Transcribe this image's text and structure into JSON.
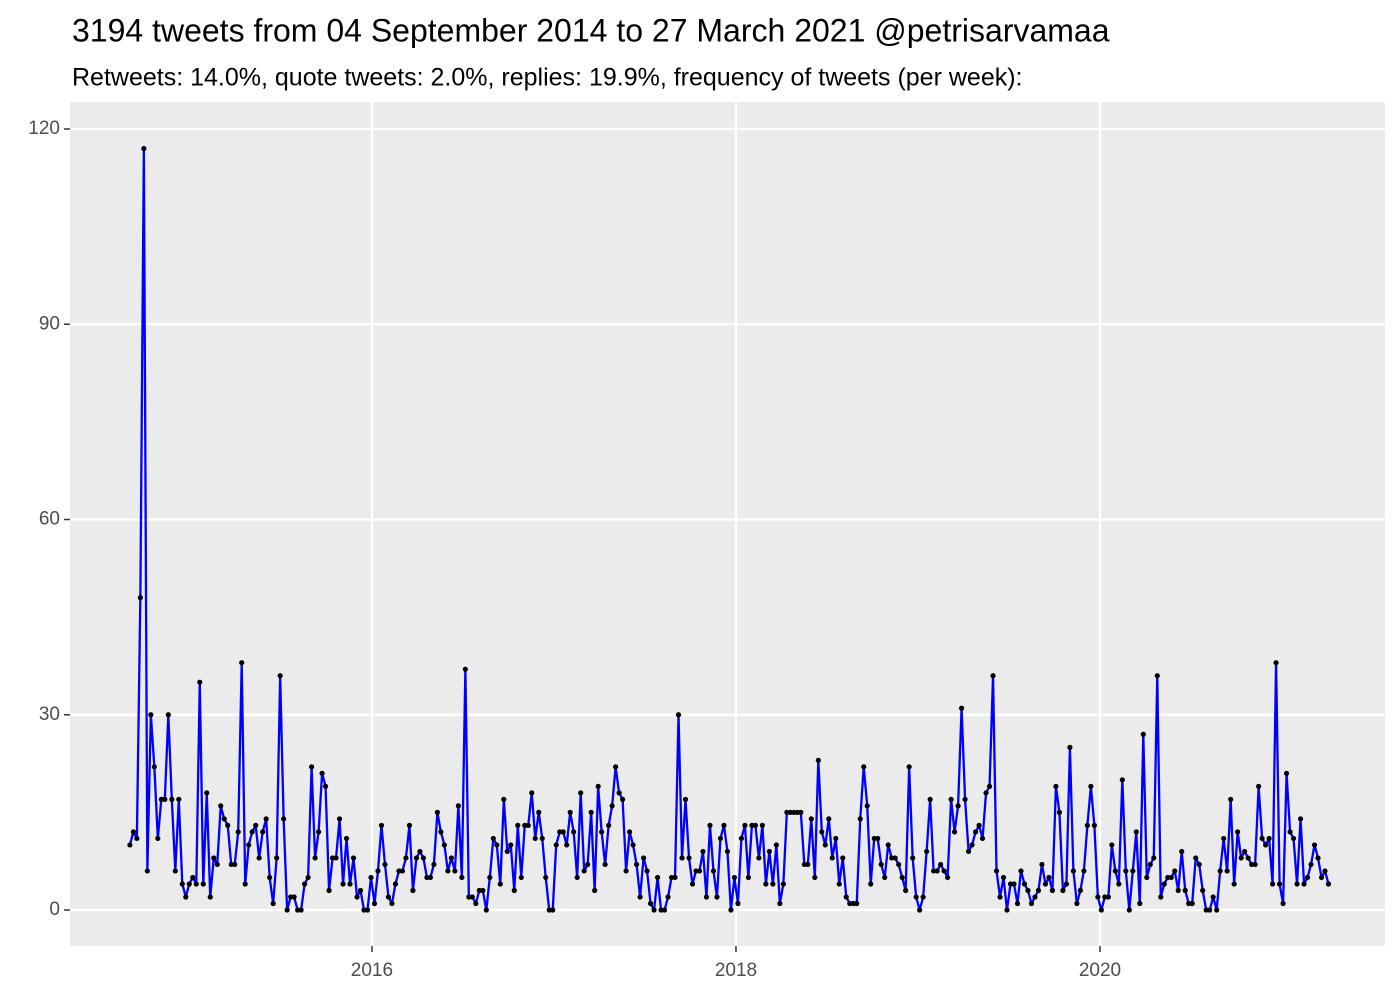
{
  "chart_data": {
    "type": "line",
    "title": "3194 tweets from 04 September 2014 to 27 March 2021 @petrisarvamaa",
    "subtitle": "Retweets: 14.0%, quote tweets: 2.0%, replies: 19.9%, frequency of tweets (per week):",
    "x": [
      2014.67,
      2014.6892,
      2014.7084,
      2014.7276,
      2014.7468,
      2014.766,
      2014.7852,
      2014.8044,
      2014.8236,
      2014.8428,
      2014.862,
      2014.8812,
      2014.9004,
      2014.9196,
      2014.9388,
      2014.958,
      2014.9772,
      2014.9964,
      2015.0156,
      2015.0348,
      2015.054,
      2015.0732,
      2015.0924,
      2015.1116,
      2015.1308,
      2015.15,
      2015.1692,
      2015.1884,
      2015.2076,
      2015.2268,
      2015.246,
      2015.2652,
      2015.2844,
      2015.3036,
      2015.3228,
      2015.342,
      2015.3612,
      2015.3804,
      2015.3996,
      2015.4188,
      2015.438,
      2015.4572,
      2015.4764,
      2015.4956,
      2015.5148,
      2015.534,
      2015.5532,
      2015.5724,
      2015.5916,
      2015.6108,
      2015.63,
      2015.6492,
      2015.6684,
      2015.6876,
      2015.7068,
      2015.726,
      2015.7452,
      2015.7644,
      2015.7836,
      2015.8028,
      2015.822,
      2015.8412,
      2015.8604,
      2015.8796,
      2015.8988,
      2015.918,
      2015.9372,
      2015.9564,
      2015.9756,
      2015.9948,
      2016.014,
      2016.0332,
      2016.0524,
      2016.0716,
      2016.0908,
      2016.11,
      2016.1292,
      2016.1484,
      2016.1676,
      2016.1868,
      2016.206,
      2016.2252,
      2016.2444,
      2016.2636,
      2016.2828,
      2016.302,
      2016.3212,
      2016.3404,
      2016.3596,
      2016.3788,
      2016.398,
      2016.4172,
      2016.4364,
      2016.4556,
      2016.4748,
      2016.494,
      2016.5132,
      2016.5324,
      2016.5516,
      2016.5708,
      2016.59,
      2016.6092,
      2016.6284,
      2016.6476,
      2016.6668,
      2016.686,
      2016.7052,
      2016.7244,
      2016.7436,
      2016.7628,
      2016.782,
      2016.8012,
      2016.8204,
      2016.8396,
      2016.8588,
      2016.878,
      2016.8972,
      2016.9164,
      2016.9356,
      2016.9548,
      2016.974,
      2016.9932,
      2017.0124,
      2017.0316,
      2017.0508,
      2017.07,
      2017.0892,
      2017.1084,
      2017.1276,
      2017.1468,
      2017.166,
      2017.1852,
      2017.2044,
      2017.2236,
      2017.2428,
      2017.262,
      2017.2812,
      2017.3004,
      2017.3196,
      2017.3388,
      2017.358,
      2017.3772,
      2017.3964,
      2017.4156,
      2017.4348,
      2017.454,
      2017.4732,
      2017.4924,
      2017.5116,
      2017.5308,
      2017.55,
      2017.5692,
      2017.5884,
      2017.6076,
      2017.6268,
      2017.646,
      2017.6652,
      2017.6844,
      2017.7036,
      2017.7228,
      2017.742,
      2017.7612,
      2017.7804,
      2017.7996,
      2017.8188,
      2017.838,
      2017.8572,
      2017.8764,
      2017.8956,
      2017.9148,
      2017.934,
      2017.9532,
      2017.9724,
      2017.9916,
      2018.0108,
      2018.03,
      2018.0492,
      2018.0684,
      2018.0876,
      2018.1068,
      2018.126,
      2018.1452,
      2018.1644,
      2018.1836,
      2018.2028,
      2018.222,
      2018.2412,
      2018.2604,
      2018.2796,
      2018.2988,
      2018.318,
      2018.3372,
      2018.3564,
      2018.3756,
      2018.3948,
      2018.414,
      2018.4332,
      2018.4524,
      2018.4716,
      2018.4908,
      2018.51,
      2018.5292,
      2018.5484,
      2018.5676,
      2018.5868,
      2018.606,
      2018.6252,
      2018.6444,
      2018.6636,
      2018.6828,
      2018.702,
      2018.7212,
      2018.7404,
      2018.7596,
      2018.7788,
      2018.798,
      2018.8172,
      2018.8364,
      2018.8556,
      2018.8748,
      2018.894,
      2018.9132,
      2018.9324,
      2018.9516,
      2018.9708,
      2018.99,
      2019.0092,
      2019.0284,
      2019.0476,
      2019.0668,
      2019.086,
      2019.1052,
      2019.1244,
      2019.1436,
      2019.1628,
      2019.182,
      2019.2012,
      2019.2204,
      2019.2396,
      2019.2588,
      2019.278,
      2019.2972,
      2019.3164,
      2019.3356,
      2019.3548,
      2019.374,
      2019.3932,
      2019.4124,
      2019.4316,
      2019.4508,
      2019.47,
      2019.4892,
      2019.5084,
      2019.5276,
      2019.5468,
      2019.566,
      2019.5852,
      2019.6044,
      2019.6236,
      2019.6428,
      2019.662,
      2019.6812,
      2019.7004,
      2019.7196,
      2019.7388,
      2019.758,
      2019.7772,
      2019.7964,
      2019.8156,
      2019.8348,
      2019.854,
      2019.8732,
      2019.8924,
      2019.9116,
      2019.9308,
      2019.95,
      2019.9692,
      2019.9884,
      2020.0076,
      2020.0268,
      2020.046,
      2020.0652,
      2020.0844,
      2020.1036,
      2020.1228,
      2020.142,
      2020.1612,
      2020.1804,
      2020.1996,
      2020.2188,
      2020.238,
      2020.2572,
      2020.2764,
      2020.2956,
      2020.3148,
      2020.334,
      2020.3532,
      2020.3724,
      2020.3916,
      2020.4108,
      2020.43,
      2020.4492,
      2020.4684,
      2020.4876,
      2020.5068,
      2020.526,
      2020.5452,
      2020.5644,
      2020.5836,
      2020.6028,
      2020.622,
      2020.6412,
      2020.6604,
      2020.6796,
      2020.6988,
      2020.718,
      2020.7372,
      2020.7564,
      2020.7756,
      2020.7948,
      2020.814,
      2020.8332,
      2020.8524,
      2020.8716,
      2020.8908,
      2020.91,
      2020.9292,
      2020.9484,
      2020.9676,
      2020.9868,
      2021.006,
      2021.0252,
      2021.0444,
      2021.0636,
      2021.0828,
      2021.102,
      2021.1212,
      2021.1404,
      2021.1596,
      2021.1788,
      2021.198,
      2021.2172,
      2021.2364,
      2021.2556
    ],
    "values": [
      10,
      12,
      11,
      48,
      117,
      6,
      30,
      22,
      11,
      17,
      17,
      30,
      17,
      6,
      17,
      4,
      2,
      4,
      5,
      4,
      35,
      4,
      18,
      2,
      8,
      7,
      16,
      14,
      13,
      7,
      7,
      12,
      38,
      4,
      10,
      12,
      13,
      8,
      12,
      14,
      5,
      1,
      8,
      36,
      14,
      0,
      2,
      2,
      0,
      0,
      4,
      5,
      22,
      8,
      12,
      21,
      19,
      3,
      8,
      8,
      14,
      4,
      11,
      4,
      8,
      2,
      3,
      0,
      0,
      5,
      1,
      6,
      13,
      7,
      2,
      1,
      4,
      6,
      6,
      8,
      13,
      3,
      8,
      9,
      8,
      5,
      5,
      7,
      15,
      12,
      10,
      6,
      8,
      6,
      16,
      5,
      37,
      2,
      2,
      1,
      3,
      3,
      0,
      5,
      11,
      10,
      4,
      17,
      9,
      10,
      3,
      13,
      5,
      13,
      13,
      18,
      11,
      15,
      11,
      5,
      0,
      0,
      10,
      12,
      12,
      10,
      15,
      12,
      5,
      18,
      6,
      7,
      15,
      3,
      19,
      12,
      7,
      13,
      16,
      22,
      18,
      17,
      6,
      12,
      10,
      7,
      2,
      8,
      6,
      1,
      0,
      5,
      0,
      0,
      2,
      5,
      5,
      30,
      8,
      17,
      8,
      4,
      6,
      6,
      9,
      2,
      13,
      6,
      2,
      11,
      13,
      9,
      0,
      5,
      1,
      11,
      13,
      5,
      13,
      13,
      8,
      13,
      4,
      9,
      4,
      10,
      1,
      4,
      15,
      15,
      15,
      15,
      15,
      7,
      7,
      14,
      5,
      23,
      12,
      10,
      14,
      8,
      11,
      4,
      8,
      2,
      1,
      1,
      1,
      14,
      22,
      16,
      4,
      11,
      11,
      7,
      5,
      10,
      8,
      8,
      7,
      5,
      3,
      22,
      8,
      2,
      0,
      2,
      9,
      17,
      6,
      6,
      7,
      6,
      5,
      17,
      12,
      16,
      31,
      17,
      9,
      10,
      12,
      13,
      11,
      18,
      19,
      36,
      6,
      2,
      5,
      0,
      4,
      4,
      1,
      6,
      4,
      3,
      1,
      2,
      3,
      7,
      4,
      5,
      3,
      19,
      15,
      3,
      4,
      25,
      6,
      1,
      3,
      6,
      13,
      19,
      13,
      2,
      0,
      2,
      2,
      10,
      6,
      4,
      20,
      6,
      0,
      6,
      12,
      1,
      27,
      5,
      7,
      8,
      36,
      2,
      4,
      5,
      5,
      6,
      3,
      9,
      3,
      1,
      1,
      8,
      7,
      3,
      0,
      0,
      2,
      0,
      6,
      11,
      6,
      17,
      4,
      12,
      8,
      9,
      8,
      7,
      7,
      19,
      11,
      10,
      11,
      4,
      38,
      4,
      1,
      21,
      12,
      11,
      4,
      14,
      4,
      5,
      7,
      10,
      8,
      5,
      6,
      4
    ],
    "color": "#0000ff",
    "marker_color": "#000000",
    "xlim": [
      2014.341,
      2021.566
    ],
    "xticks": [
      2016,
      2018,
      2020
    ],
    "ylim": [
      -5.53,
      124.15
    ],
    "yticks": [
      0,
      30,
      60,
      90,
      120
    ],
    "grid": true
  }
}
